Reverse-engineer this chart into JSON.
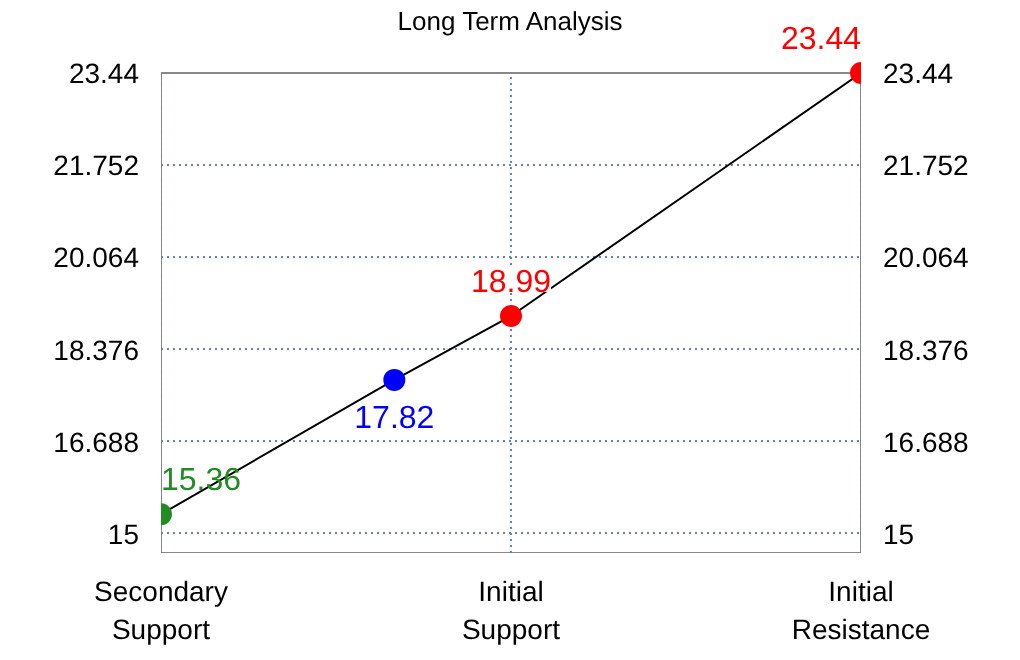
{
  "chart_data": {
    "type": "line",
    "title": "Long Term Analysis",
    "categories": [
      "Secondary Support",
      null,
      null,
      "Initial Support",
      null,
      null,
      "Initial Resistance"
    ],
    "series": [
      {
        "color": "#000000",
        "colors": [
          "#228b22",
          null,
          "#0000ff",
          "#ff0000",
          null,
          null,
          "#ff0000"
        ],
        "values": [
          15.36,
          null,
          17.82,
          18.99,
          null,
          null,
          23.44
        ],
        "value_labels": [
          "15.36",
          null,
          "17.82",
          "18.99",
          null,
          null,
          "23.44"
        ]
      }
    ],
    "ylim": [
      14.65,
      23.44
    ],
    "yticks": [
      15,
      16.688,
      18.376,
      20.064,
      21.752,
      23.44
    ],
    "y2lim": [
      14.65,
      23.44
    ],
    "y2ticks": [
      15,
      16.688,
      18.376,
      20.064,
      21.752,
      23.44
    ],
    "grid": true,
    "marker": "circle",
    "line_style": "solid"
  }
}
